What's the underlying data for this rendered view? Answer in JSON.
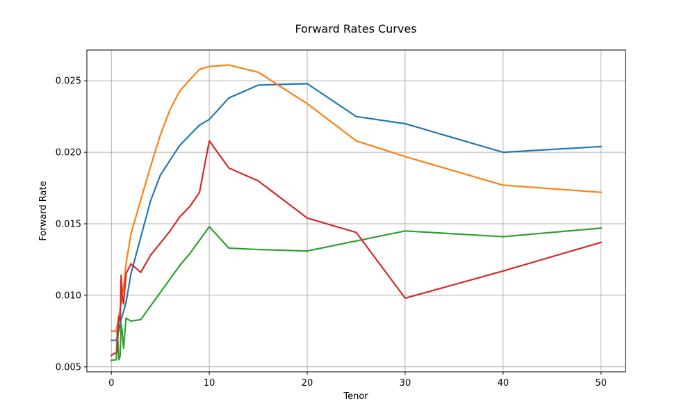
{
  "chart_data": {
    "type": "line",
    "title": "Forward Rates Curves",
    "xlabel": "Tenor",
    "ylabel": "Forward Rate",
    "xlim": [
      -2.5,
      52.5
    ],
    "ylim": [
      0.00465,
      0.02715
    ],
    "xticks": [
      0,
      10,
      20,
      30,
      40,
      50
    ],
    "xtick_labels": [
      "0",
      "10",
      "20",
      "30",
      "40",
      "50"
    ],
    "yticks": [
      0.005,
      0.01,
      0.015,
      0.02,
      0.025
    ],
    "ytick_labels": [
      "0.005",
      "0.010",
      "0.015",
      "0.020",
      "0.025"
    ],
    "grid": true,
    "legend": false,
    "series": [
      {
        "color": "#1f77b4",
        "x": [
          0,
          0.5,
          0.75,
          1,
          1.25,
          1.5,
          2,
          4,
          5,
          7,
          9,
          10,
          12,
          15,
          20,
          25,
          30,
          40,
          50
        ],
        "y": [
          0.00685,
          0.00685,
          0.0075,
          0.0083,
          0.0089,
          0.0095,
          0.0115,
          0.0166,
          0.0184,
          0.0205,
          0.0219,
          0.0223,
          0.0238,
          0.0247,
          0.0248,
          0.0225,
          0.022,
          0.02,
          0.0204
        ]
      },
      {
        "color": "#ff7f0e",
        "x": [
          0,
          0.5,
          0.75,
          1,
          1.25,
          1.5,
          2,
          4,
          5,
          6,
          7,
          9,
          10,
          12,
          15,
          20,
          25,
          30,
          40,
          50
        ],
        "y": [
          0.0075,
          0.0075,
          0.0085,
          0.0094,
          0.0106,
          0.0122,
          0.0143,
          0.019,
          0.0212,
          0.023,
          0.0243,
          0.0258,
          0.026,
          0.0261,
          0.0256,
          0.0234,
          0.0208,
          0.0197,
          0.0177,
          0.0172
        ]
      },
      {
        "color": "#2ca02c",
        "x": [
          0,
          0.5,
          0.6,
          0.75,
          0.8,
          0.9,
          1,
          1.1,
          1.25,
          1.5,
          2,
          3,
          5,
          7,
          8,
          10,
          12,
          15,
          20,
          30,
          40,
          50
        ],
        "y": [
          0.00545,
          0.0055,
          0.0075,
          0.0056,
          0.0055,
          0.0058,
          0.008,
          0.0075,
          0.0063,
          0.0084,
          0.0082,
          0.0083,
          0.0102,
          0.0121,
          0.0129,
          0.0148,
          0.0133,
          0.0132,
          0.0131,
          0.0145,
          0.0141,
          0.0147
        ]
      },
      {
        "color": "#d62728",
        "x": [
          0,
          0.5,
          0.6,
          0.75,
          0.9,
          1,
          1.1,
          1.25,
          1.5,
          2,
          3,
          4,
          6,
          7,
          8,
          9,
          10,
          12,
          15,
          20,
          25,
          30,
          40,
          50
        ],
        "y": [
          0.0058,
          0.006,
          0.0061,
          0.0085,
          0.0082,
          0.0114,
          0.01,
          0.0094,
          0.0115,
          0.0122,
          0.0116,
          0.0128,
          0.0145,
          0.0155,
          0.0162,
          0.0172,
          0.0208,
          0.0189,
          0.018,
          0.0154,
          0.0144,
          0.0098,
          0.0117,
          0.0137
        ]
      }
    ]
  }
}
